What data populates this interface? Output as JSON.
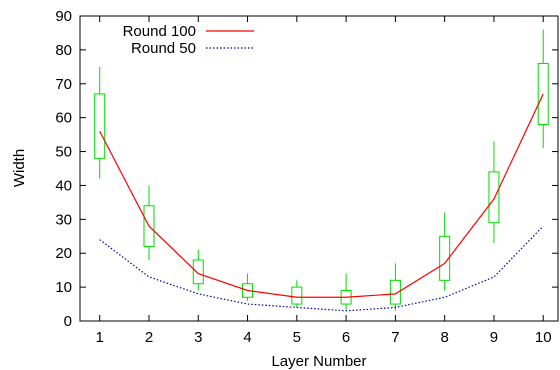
{
  "chart_data": {
    "type": "line",
    "xlabel": "Layer Number",
    "ylabel": "Width",
    "x_ticks": [
      "1",
      "2",
      "3",
      "4",
      "5",
      "6",
      "7",
      "8",
      "9",
      "10"
    ],
    "y_ticks": [
      "0",
      "10",
      "20",
      "30",
      "40",
      "50",
      "60",
      "70",
      "80",
      "90"
    ],
    "xlim": [
      0.6,
      10.3
    ],
    "ylim": [
      0,
      90
    ],
    "legend_position": "top-left",
    "x": [
      1,
      2,
      3,
      4,
      5,
      6,
      7,
      8,
      9,
      10
    ],
    "series": [
      {
        "name": "Round 100",
        "style": "solid",
        "color": "#ff0000",
        "values": [
          56,
          28,
          14,
          9,
          7,
          7,
          8,
          17,
          36,
          67
        ]
      },
      {
        "name": "Round 50",
        "style": "dotted",
        "color": "#0000aa",
        "values": [
          24,
          13,
          8,
          5,
          4,
          3,
          4,
          7,
          13,
          28
        ]
      }
    ],
    "boxes": {
      "color": "#00dd00",
      "items": [
        {
          "x": 1,
          "low": 42,
          "q1": 48,
          "q3": 67,
          "high": 75
        },
        {
          "x": 2,
          "low": 18,
          "q1": 22,
          "q3": 34,
          "high": 40
        },
        {
          "x": 3,
          "low": 9,
          "q1": 11,
          "q3": 18,
          "high": 21
        },
        {
          "x": 4,
          "low": 6,
          "q1": 7,
          "q3": 11,
          "high": 14
        },
        {
          "x": 5,
          "low": 4,
          "q1": 5,
          "q3": 10,
          "high": 12
        },
        {
          "x": 6,
          "low": 3,
          "q1": 5,
          "q3": 9,
          "high": 14
        },
        {
          "x": 7,
          "low": 3,
          "q1": 5,
          "q3": 12,
          "high": 17
        },
        {
          "x": 8,
          "low": 9,
          "q1": 12,
          "q3": 25,
          "high": 32
        },
        {
          "x": 9,
          "low": 23,
          "q1": 29,
          "q3": 44,
          "high": 53
        },
        {
          "x": 10,
          "low": 51,
          "q1": 58,
          "q3": 76,
          "high": 86
        }
      ]
    }
  }
}
